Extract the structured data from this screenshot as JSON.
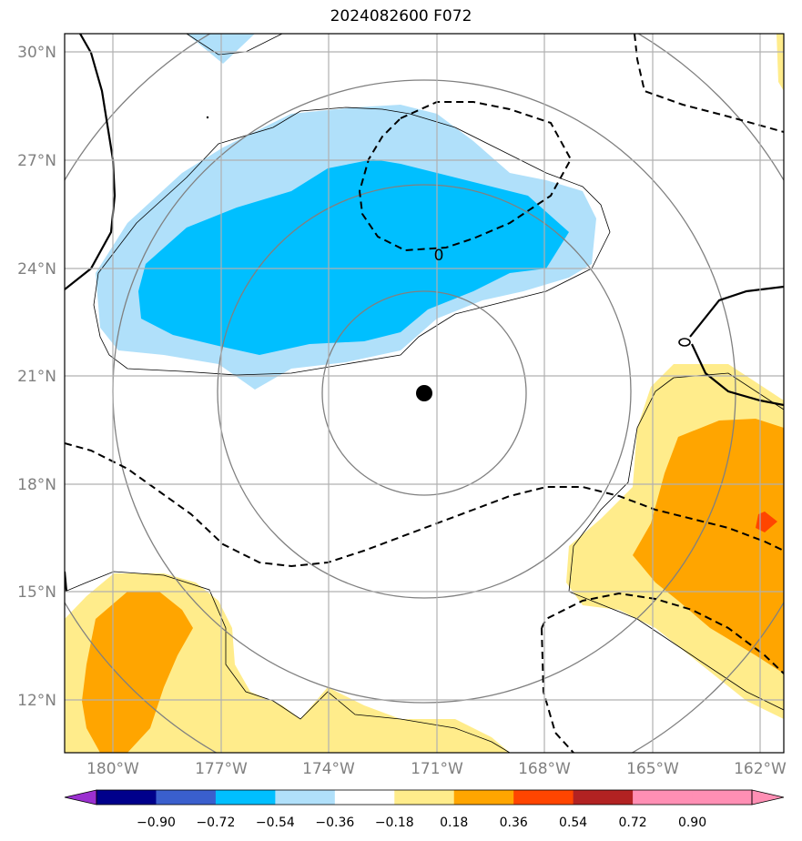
{
  "title": "2024082600 F072",
  "map": {
    "lat_ticks": [
      "30°N",
      "27°N",
      "24°N",
      "21°N",
      "18°N",
      "15°N",
      "12°N"
    ],
    "lon_ticks": [
      "180°W",
      "177°W",
      "174°W",
      "171°W",
      "168°W",
      "165°W",
      "162°W"
    ],
    "contour_label": "0",
    "gridlines": true
  },
  "colorbar": {
    "labels": [
      "−0.90",
      "−0.72",
      "−0.54",
      "−0.36",
      "−0.18",
      "0.18",
      "0.36",
      "0.54",
      "0.72",
      "0.90"
    ],
    "colors": [
      "#9b30d0",
      "#00008b",
      "#3a5fcd",
      "#00bfff",
      "#b0e0fa",
      "#ffffff",
      "#ffec8b",
      "#ffa500",
      "#ff4500",
      "#b22222",
      "#ff8fb4",
      "#ff8fb4"
    ],
    "extend": "both"
  },
  "storm": {
    "center_lat": 20.5,
    "center_lon": "171.4°W"
  }
}
